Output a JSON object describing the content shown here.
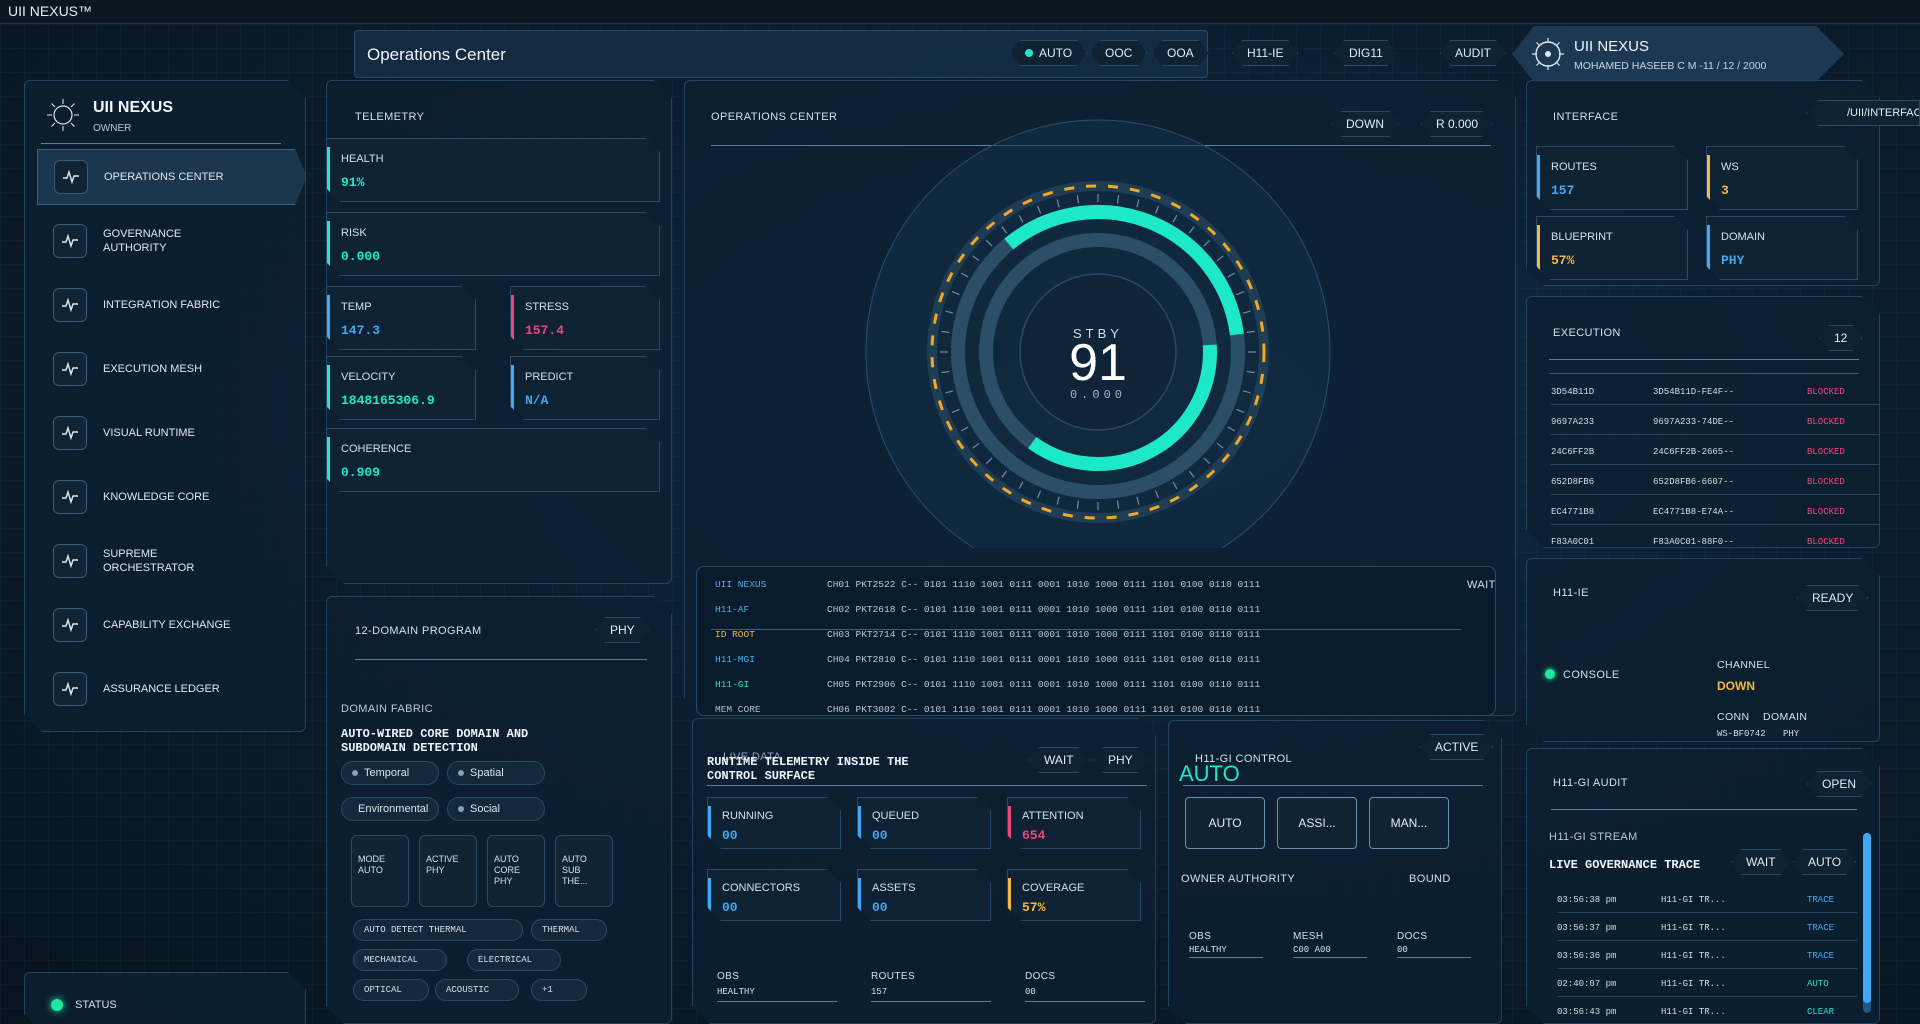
{
  "window_title": "UII NEXUS™",
  "header": {
    "title": "Operations Center",
    "pills": [
      {
        "label": "AUTO",
        "dot": true
      },
      {
        "label": "OOC"
      },
      {
        "label": "OOA"
      },
      {
        "label": "H11-IE"
      },
      {
        "label": "DIG11"
      },
      {
        "label": "AUDIT"
      }
    ],
    "user": {
      "name": "UII NEXUS",
      "detail": "MOHAMED HASEEB C M -11 / 12 / 2000"
    }
  },
  "sidebar": {
    "brand": "UII NEXUS",
    "role": "OWNER",
    "items": [
      {
        "label": "OPERATIONS CENTER"
      },
      {
        "label": "GOVERNANCE AUTHORITY"
      },
      {
        "label": "INTEGRATION FABRIC"
      },
      {
        "label": "EXECUTION MESH"
      },
      {
        "label": "VISUAL RUNTIME"
      },
      {
        "label": "KNOWLEDGE CORE"
      },
      {
        "label": "SUPREME ORCHESTRATOR"
      },
      {
        "label": "CAPABILITY EXCHANGE"
      },
      {
        "label": "ASSURANCE LEDGER"
      }
    ],
    "status_label": "STATUS"
  },
  "telemetry": {
    "title": "TELEMETRY",
    "health": {
      "label": "HEALTH",
      "value": "91%"
    },
    "risk": {
      "label": "RISK",
      "value": "0.000"
    },
    "temp": {
      "label": "TEMP",
      "value": "147.3"
    },
    "stress": {
      "label": "STRESS",
      "value": "157.4"
    },
    "velocity": {
      "label": "VELOCITY",
      "value": "1848165306.9"
    },
    "predict": {
      "label": "PREDICT",
      "value": "N/A"
    },
    "coherence": {
      "label": "COHERENCE",
      "value": "0.909"
    }
  },
  "program": {
    "title": "12-DOMAIN PROGRAM",
    "badge": "PHY",
    "fabric_label": "DOMAIN FABRIC",
    "heading": "AUTO-WIRED CORE DOMAIN AND SUBDOMAIN DETECTION",
    "chips": [
      "Temporal",
      "Spatial",
      "Environmental",
      "Social"
    ],
    "minis": [
      "MODE AUTO",
      "ACTIVE PHY",
      "AUTO CORE PHY",
      "AUTO SUB THE..."
    ],
    "tags": [
      "AUTO DETECT THERMAL",
      "THERMAL",
      "MECHANICAL",
      "ELECTRICAL",
      "OPTICAL",
      "ACOUSTIC",
      "+1"
    ]
  },
  "ops": {
    "title": "OPERATIONS CENTER",
    "state_btn": "DOWN",
    "rate_btn": "R 0.000",
    "gauge": {
      "state": "STBY",
      "value": "91",
      "sub": "0.000",
      "outer_fraction": 0.34,
      "inner_fraction": 0.36
    },
    "wait_label": "WAIT",
    "log": [
      {
        "src": "UII NEXUS",
        "line": "CH01 PKT2522 C--  0101 1110 1001 0111 0001 1010 1000 0111 1101 0100 0110 0111",
        "color": "#4fb0ea"
      },
      {
        "src": "H11-AF",
        "line": "CH02 PKT2618 C--  0101 1110 1001 0111 0001 1010 1000 0111 1101 0100 0110 0111",
        "color": "#4fb0ea"
      },
      {
        "src": "ID ROOT",
        "line": "CH03 PKT2714 C--  0101 1110 1001 0111 0001 1010 1000 0111 1101 0100 0110 0111",
        "color": "#f0b04a"
      },
      {
        "src": "H11-MGI",
        "line": "CH04 PKT2810 C--  0101 1110 1001 0111 0001 1010 1000 0111 1101 0100 0110 0111",
        "color": "#4fb0ea"
      },
      {
        "src": "H11-GI",
        "line": "CH05 PKT2906 C--  0101 1110 1001 0111 0001 1010 1000 0111 1101 0100 0110 0111",
        "color": "#2fe0c0"
      },
      {
        "src": "MEM CORE",
        "line": "CH06 PKT3002 C--  0101 1110 1001 0111 0001 1010 1000 0111 1101 0100 0110 0111",
        "color": "#a8bccb"
      }
    ]
  },
  "live": {
    "kicker": "LIVE DATA",
    "heading": "RUNTIME TELEMETRY INSIDE THE CONTROL SURFACE",
    "wait": "WAIT",
    "phy": "PHY",
    "cards": [
      {
        "label": "RUNNING",
        "value": "00",
        "color": "#3fa9f5"
      },
      {
        "label": "QUEUED",
        "value": "00",
        "color": "#3fa9f5"
      },
      {
        "label": "ATTENTION",
        "value": "654",
        "color": "#f0457a"
      },
      {
        "label": "CONNECTORS",
        "value": "00",
        "color": "#3fa9f5"
      },
      {
        "label": "ASSETS",
        "value": "00",
        "color": "#3fa9f5"
      },
      {
        "label": "COVERAGE",
        "value": "57%",
        "color": "#f5b740"
      }
    ],
    "footer": [
      {
        "label": "OBS",
        "value": "HEALTHY"
      },
      {
        "label": "ROUTES",
        "value": "157"
      },
      {
        "label": "DOCS",
        "value": "00"
      }
    ]
  },
  "control": {
    "title": "H11-GI CONTROL",
    "active": "ACTIVE",
    "mode": "AUTO",
    "buttons": [
      "AUTO",
      "ASSI...",
      "MAN..."
    ],
    "owner_label": "OWNER AUTHORITY",
    "bound": "BOUND",
    "footer": [
      {
        "label": "OBS",
        "value": "HEALTHY"
      },
      {
        "label": "MESH",
        "value": "C00 A00"
      },
      {
        "label": "DOCS",
        "value": "00"
      }
    ]
  },
  "interface": {
    "title": "INTERFACE",
    "path": "/UII/INTERFACE",
    "cards": [
      {
        "label": "ROUTES",
        "value": "157",
        "color": "#3fa9f5"
      },
      {
        "label": "WS",
        "value": "3",
        "color": "#f5b740"
      },
      {
        "label": "BLUEPRINT",
        "value": "57%",
        "color": "#f5b740"
      },
      {
        "label": "DOMAIN",
        "value": "PHY",
        "color": "#3fa9f5"
      }
    ]
  },
  "execution": {
    "title": "EXECUTION",
    "count": "12",
    "rows": [
      {
        "id": "3D54B11D",
        "ref": "3D54B11D-FE4F--",
        "status": "BLOCKED"
      },
      {
        "id": "9697A233",
        "ref": "9697A233-74DE--",
        "status": "BLOCKED"
      },
      {
        "id": "24C6FF2B",
        "ref": "24C6FF2B-2665--",
        "status": "BLOCKED"
      },
      {
        "id": "652D8FB6",
        "ref": "652D8FB6-6607--",
        "status": "BLOCKED"
      },
      {
        "id": "EC4771B8",
        "ref": "EC4771B8-E74A--",
        "status": "BLOCKED"
      },
      {
        "id": "F83A0C01",
        "ref": "F83A0C01-88F0--",
        "status": "BLOCKED"
      }
    ]
  },
  "h11ie": {
    "title": "H11-IE",
    "ready": "READY",
    "console": "CONSOLE",
    "channel_label": "CHANNEL",
    "channel_value": "DOWN",
    "conn_label": "CONN",
    "domain_label": "DOMAIN",
    "conn_value": "WS-BF0742",
    "domain_value": "PHY"
  },
  "audit": {
    "title": "H11-GI AUDIT",
    "open": "OPEN",
    "stream_label": "H11-GI STREAM",
    "heading": "LIVE GOVERNANCE TRACE",
    "wait": "WAIT",
    "auto": "AUTO",
    "rows": [
      {
        "time": "03:56:38 pm",
        "src": "H11-GI TR...",
        "tag": "TRACE",
        "color": "#3fa9f5"
      },
      {
        "time": "03:56:37 pm",
        "src": "H11-GI TR...",
        "tag": "TRACE",
        "color": "#3fa9f5"
      },
      {
        "time": "03:56:36 pm",
        "src": "H11-GI TR...",
        "tag": "TRACE",
        "color": "#3fa9f5"
      },
      {
        "time": "02:40:07 pm",
        "src": "H11-GI TR...",
        "tag": "AUTO",
        "color": "#2fe0c0"
      },
      {
        "time": "03:56:43 pm",
        "src": "H11-GI TR...",
        "tag": "CLEAR",
        "color": "#2fe0c0"
      }
    ]
  },
  "colors": {
    "accent": "#1de9c8",
    "blue": "#3fa9f5",
    "amber": "#f5b740",
    "pink": "#f0457a"
  }
}
